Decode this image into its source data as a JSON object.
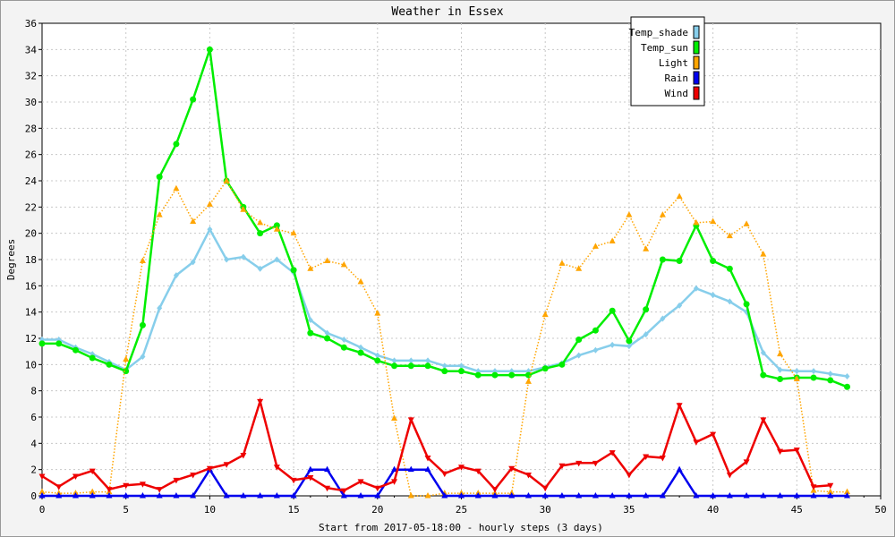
{
  "chart_data": {
    "type": "line",
    "title": "Weather in Essex",
    "xlabel": "Start from 2017-05-18:00 - hourly steps (3 days)",
    "ylabel": "Degrees",
    "xlim": [
      0,
      50
    ],
    "ylim": [
      0,
      36
    ],
    "xticks": [
      0,
      5,
      10,
      15,
      20,
      25,
      30,
      35,
      40,
      45,
      50
    ],
    "yticks": [
      0,
      2,
      4,
      6,
      8,
      10,
      12,
      14,
      16,
      18,
      20,
      22,
      24,
      26,
      28,
      30,
      32,
      34,
      36
    ],
    "grid": true,
    "legend_position": "top-right",
    "x": [
      0,
      1,
      2,
      3,
      4,
      5,
      6,
      7,
      8,
      9,
      10,
      11,
      12,
      13,
      14,
      15,
      16,
      17,
      18,
      19,
      20,
      21,
      22,
      23,
      24,
      25,
      26,
      27,
      28,
      29,
      30,
      31,
      32,
      33,
      34,
      35,
      36,
      37,
      38,
      39,
      40,
      41,
      42,
      43,
      44,
      45,
      46,
      47,
      48
    ],
    "series": [
      {
        "name": "Temp_shade",
        "color": "#87ceeb",
        "marker": "diamond",
        "style": "solid",
        "values": [
          11.9,
          11.9,
          11.3,
          10.8,
          10.2,
          9.6,
          10.6,
          14.3,
          16.8,
          17.8,
          20.3,
          18.0,
          18.2,
          17.3,
          18.0,
          17.0,
          13.4,
          12.4,
          11.9,
          11.3,
          10.7,
          10.3,
          10.3,
          10.3,
          9.9,
          9.9,
          9.5,
          9.5,
          9.5,
          9.5,
          9.8,
          10.1,
          10.7,
          11.1,
          11.5,
          11.4,
          12.3,
          13.5,
          14.5,
          15.8,
          15.3,
          14.8,
          14.0,
          10.9,
          9.6,
          9.5,
          9.5,
          9.3,
          9.1
        ]
      },
      {
        "name": "Temp_sun",
        "color": "#00ee00",
        "marker": "circle",
        "style": "solid",
        "values": [
          11.6,
          11.6,
          11.1,
          10.5,
          10.0,
          9.5,
          13.0,
          24.3,
          26.8,
          30.2,
          34.0,
          24.0,
          22.0,
          20.0,
          20.6,
          17.2,
          12.4,
          12.0,
          11.3,
          10.9,
          10.3,
          9.9,
          9.9,
          9.9,
          9.5,
          9.5,
          9.2,
          9.2,
          9.2,
          9.2,
          9.7,
          10.0,
          11.9,
          12.6,
          14.1,
          11.8,
          14.2,
          18.0,
          17.9,
          20.6,
          17.9,
          17.3,
          14.6,
          9.2,
          8.9,
          9.0,
          9.0,
          8.8,
          8.3
        ]
      },
      {
        "name": "Light",
        "color": "#ffa500",
        "marker": "triangle-up",
        "style": "dotted",
        "values": [
          0.3,
          0.2,
          0.2,
          0.3,
          0.3,
          10.4,
          17.9,
          21.4,
          23.4,
          20.9,
          22.2,
          24.0,
          21.8,
          20.8,
          20.3,
          20.0,
          17.3,
          17.9,
          17.6,
          16.3,
          13.9,
          5.9,
          0.0,
          0.0,
          0.2,
          0.2,
          0.2,
          0.2,
          0.2,
          8.7,
          13.8,
          17.7,
          17.3,
          19.0,
          19.4,
          21.4,
          18.8,
          21.4,
          22.8,
          20.8,
          20.9,
          19.8,
          20.7,
          18.4,
          10.8,
          8.9,
          0.4,
          0.3,
          0.3
        ]
      },
      {
        "name": "Rain",
        "color": "#0000ee",
        "marker": "triangle-up",
        "style": "solid",
        "values": [
          0,
          0,
          0,
          0,
          0,
          0,
          0,
          0,
          0,
          0,
          2,
          0,
          0,
          0,
          0,
          0,
          2,
          2,
          0,
          0,
          0,
          2,
          2,
          2,
          0,
          0,
          0,
          0,
          0,
          0,
          0,
          0,
          0,
          0,
          0,
          0,
          0,
          0,
          2,
          0,
          0,
          0,
          0,
          0,
          0,
          0,
          0,
          0,
          0
        ]
      },
      {
        "name": "Wind",
        "color": "#ee0000",
        "marker": "triangle-down",
        "style": "solid",
        "values": [
          1.5,
          0.7,
          1.5,
          1.9,
          0.5,
          0.8,
          0.9,
          0.5,
          1.2,
          1.6,
          2.1,
          2.4,
          3.1,
          7.2,
          2.2,
          1.2,
          1.4,
          0.6,
          0.4,
          1.1,
          0.6,
          1.1,
          5.8,
          2.9,
          1.7,
          2.2,
          1.9,
          0.5,
          2.1,
          1.6,
          0.6,
          2.3,
          2.5,
          2.5,
          3.3,
          1.6,
          3.0,
          2.9,
          6.9,
          4.1,
          4.7,
          1.6,
          2.6,
          5.8,
          3.4,
          3.5,
          0.7,
          0.8,
          null
        ]
      }
    ]
  }
}
